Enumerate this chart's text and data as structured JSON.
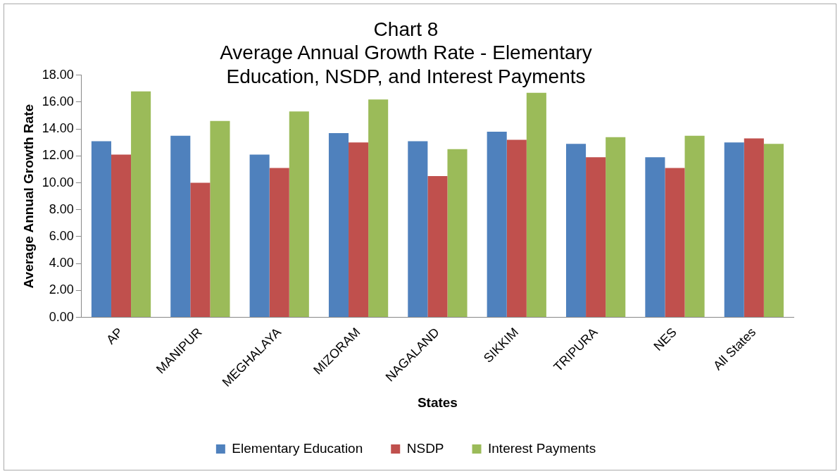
{
  "chart_data": {
    "type": "bar",
    "title": "Chart 8",
    "subtitle": "Average Annual Growth Rate - Elementary Education, NSDP, and Interest Payments",
    "xlabel": "States",
    "ylabel": "Average Annual Growth Rate",
    "categories": [
      "AP",
      "MANIPUR",
      "MEGHALAYA",
      "MIZORAM",
      "NAGALAND",
      "SIKKIM",
      "TRIPURA",
      "NES",
      "All States"
    ],
    "series": [
      {
        "name": "Elementary Education",
        "color": "#4f81bd",
        "values": [
          13.1,
          13.5,
          12.1,
          13.7,
          13.1,
          13.8,
          12.9,
          11.9,
          13.0
        ]
      },
      {
        "name": "NSDP",
        "color": "#c0504d",
        "values": [
          12.1,
          10.0,
          11.1,
          13.0,
          10.5,
          13.2,
          11.9,
          11.1,
          13.3
        ]
      },
      {
        "name": "Interest Payments",
        "color": "#9bbb59",
        "values": [
          16.8,
          14.6,
          15.3,
          16.2,
          12.5,
          16.7,
          13.4,
          13.5,
          12.9
        ]
      }
    ],
    "ylim": [
      0,
      18
    ],
    "yticks": [
      {
        "value": 0,
        "label": "0.00"
      },
      {
        "value": 2,
        "label": "2.00"
      },
      {
        "value": 4,
        "label": "4.00"
      },
      {
        "value": 6,
        "label": "6.00"
      },
      {
        "value": 8,
        "label": "8.00"
      },
      {
        "value": 10,
        "label": "10.00"
      },
      {
        "value": 12,
        "label": "12.00"
      },
      {
        "value": 14,
        "label": "14.00"
      },
      {
        "value": 16,
        "label": "16.00"
      },
      {
        "value": 18,
        "label": "18.00"
      }
    ],
    "grid": false,
    "legend": "bottom"
  }
}
